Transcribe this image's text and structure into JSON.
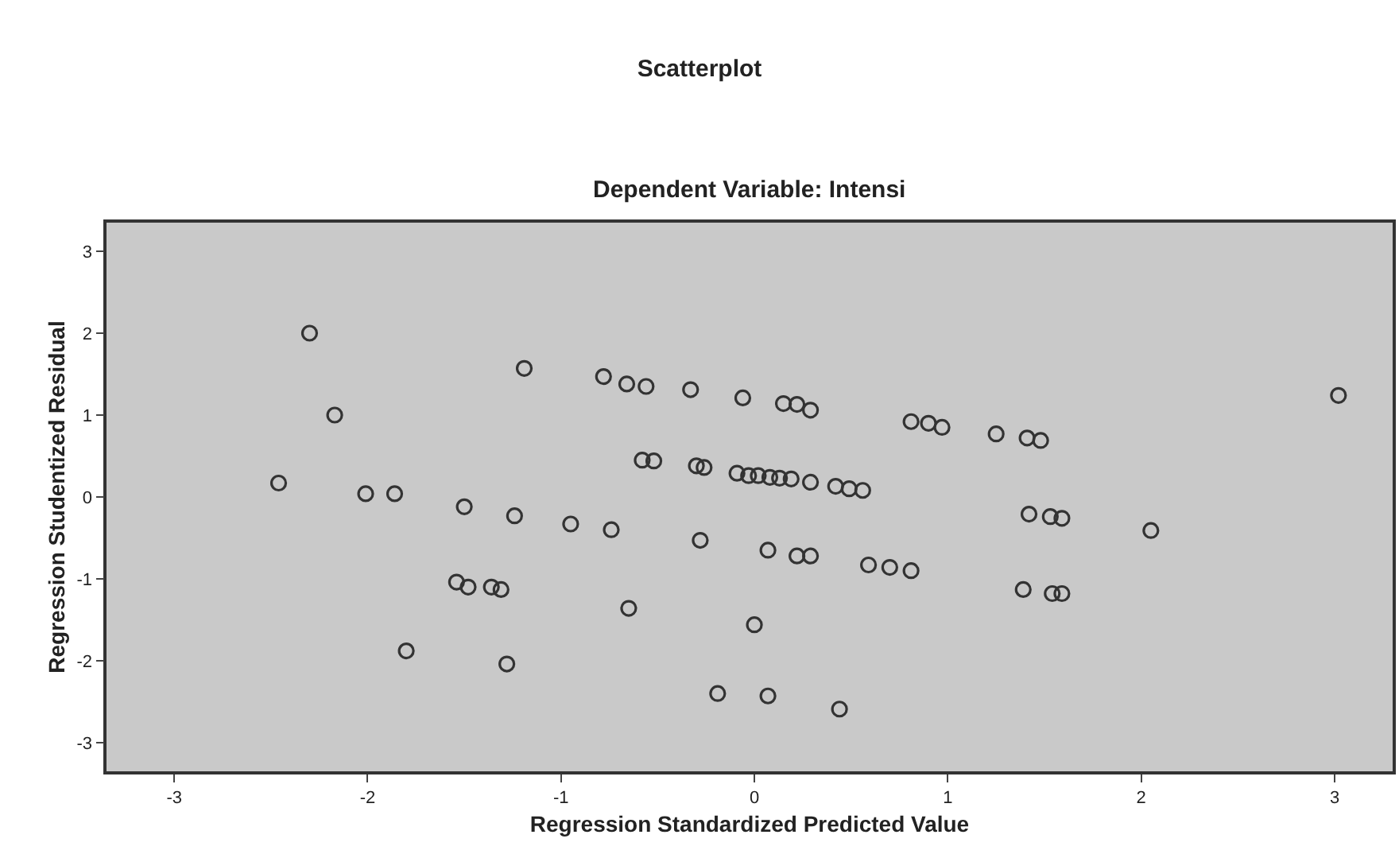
{
  "chart_data": {
    "type": "scatter",
    "title": "Scatterplot",
    "subtitle": "Dependent Variable: Intensi",
    "xlabel": "Regression Standardized Predicted Value",
    "ylabel": "Regression Studentized Residual",
    "x": [
      -2.3,
      -1.19,
      -2.17,
      -2.46,
      -2.01,
      -1.86,
      -1.5,
      -1.24,
      -1.54,
      -1.48,
      -1.36,
      -1.31,
      -1.8,
      -1.28,
      -0.78,
      -0.66,
      -0.56,
      -0.33,
      -0.06,
      0.15,
      0.22,
      0.29,
      0.81,
      0.9,
      0.97,
      -0.58,
      -0.52,
      -0.3,
      -0.26,
      -0.09,
      -0.03,
      0.02,
      0.08,
      0.13,
      0.19,
      0.29,
      0.42,
      0.49,
      0.56,
      -0.95,
      -0.74,
      -0.28,
      0.07,
      0.22,
      0.29,
      0.59,
      0.7,
      0.81,
      -0.65,
      0.0,
      -0.19,
      0.07,
      0.44,
      3.02,
      1.25,
      1.41,
      1.48,
      1.42,
      1.53,
      1.59,
      2.05,
      1.39,
      1.54,
      1.59
    ],
    "values": [
      2.0,
      1.57,
      1.0,
      0.17,
      0.04,
      0.04,
      -0.12,
      -0.23,
      -1.04,
      -1.1,
      -1.1,
      -1.13,
      -1.88,
      -2.04,
      1.47,
      1.38,
      1.35,
      1.31,
      1.21,
      1.14,
      1.13,
      1.06,
      0.92,
      0.9,
      0.85,
      0.45,
      0.44,
      0.38,
      0.36,
      0.29,
      0.26,
      0.26,
      0.24,
      0.23,
      0.22,
      0.18,
      0.13,
      0.1,
      0.08,
      -0.33,
      -0.4,
      -0.53,
      -0.65,
      -0.72,
      -0.72,
      -0.83,
      -0.86,
      -0.9,
      -1.36,
      -1.56,
      -2.4,
      -2.43,
      -2.59,
      1.24,
      0.77,
      0.72,
      0.69,
      -0.21,
      -0.24,
      -0.26,
      -0.41,
      -1.13,
      -1.18,
      -1.18
    ],
    "color": "#333333",
    "marker": "circle",
    "xlim": [
      -3.35,
      3.3
    ],
    "xticks": [
      -3,
      -2,
      -1,
      0,
      1,
      2,
      3
    ],
    "ylim": [
      -3.35,
      3.35
    ],
    "yticks": [
      -3,
      -2,
      -1,
      0,
      1,
      2,
      3
    ],
    "grid": false
  }
}
